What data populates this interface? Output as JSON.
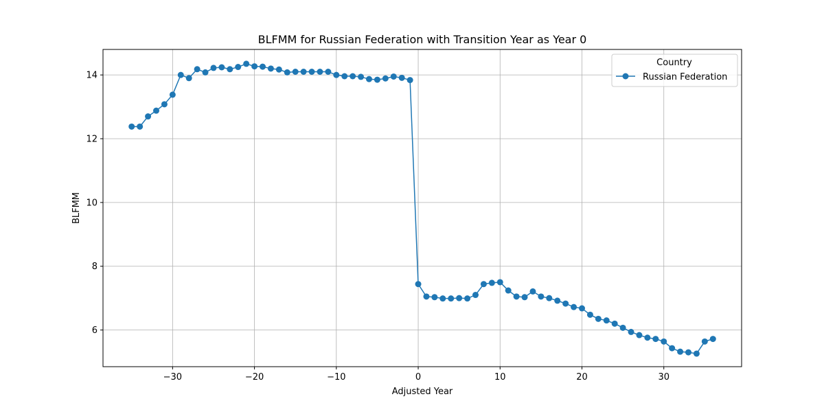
{
  "chart_data": {
    "type": "line",
    "title": "BLFMM for Russian Federation with Transition Year as Year 0",
    "xlabel": "Adjusted Year",
    "ylabel": "BLFMM",
    "xlim": [
      -38.5,
      39.5
    ],
    "ylim": [
      4.85,
      14.8
    ],
    "xticks": [
      -30,
      -20,
      -10,
      0,
      10,
      20,
      30
    ],
    "xtick_labels": [
      "−30",
      "−20",
      "−10",
      "0",
      "10",
      "20",
      "30"
    ],
    "yticks": [
      6,
      8,
      10,
      12,
      14
    ],
    "ytick_labels": [
      "6",
      "8",
      "10",
      "12",
      "14"
    ],
    "grid": true,
    "legend": {
      "title": "Country",
      "placement": "top-right"
    },
    "series": [
      {
        "name": "Russian Federation",
        "color": "#1f77b4",
        "marker": "circle",
        "x": [
          -35,
          -34,
          -33,
          -32,
          -31,
          -30,
          -29,
          -28,
          -27,
          -26,
          -25,
          -24,
          -23,
          -22,
          -21,
          -20,
          -19,
          -18,
          -17,
          -16,
          -15,
          -14,
          -13,
          -12,
          -11,
          -10,
          -9,
          -8,
          -7,
          -6,
          -5,
          -4,
          -3,
          -2,
          -1,
          0,
          1,
          2,
          3,
          4,
          5,
          6,
          7,
          8,
          9,
          10,
          11,
          12,
          13,
          14,
          15,
          16,
          17,
          18,
          19,
          20,
          21,
          22,
          23,
          24,
          25,
          26,
          27,
          28,
          29,
          30,
          31,
          32,
          33,
          34,
          35,
          36
        ],
        "y": [
          12.38,
          12.38,
          12.7,
          12.88,
          13.08,
          13.38,
          14.0,
          13.9,
          14.18,
          14.08,
          14.22,
          14.24,
          14.18,
          14.25,
          14.35,
          14.27,
          14.26,
          14.2,
          14.17,
          14.08,
          14.1,
          14.1,
          14.1,
          14.1,
          14.1,
          14.0,
          13.96,
          13.96,
          13.94,
          13.87,
          13.85,
          13.89,
          13.95,
          13.91,
          13.84,
          7.44,
          7.05,
          7.03,
          6.99,
          6.99,
          7.0,
          6.99,
          7.1,
          7.44,
          7.48,
          7.5,
          7.24,
          7.05,
          7.03,
          7.21,
          7.05,
          7.0,
          6.92,
          6.83,
          6.72,
          6.68,
          6.48,
          6.35,
          6.3,
          6.2,
          6.07,
          5.94,
          5.84,
          5.76,
          5.72,
          5.64,
          5.43,
          5.32,
          5.3,
          5.26,
          5.64,
          5.72
        ]
      }
    ]
  }
}
